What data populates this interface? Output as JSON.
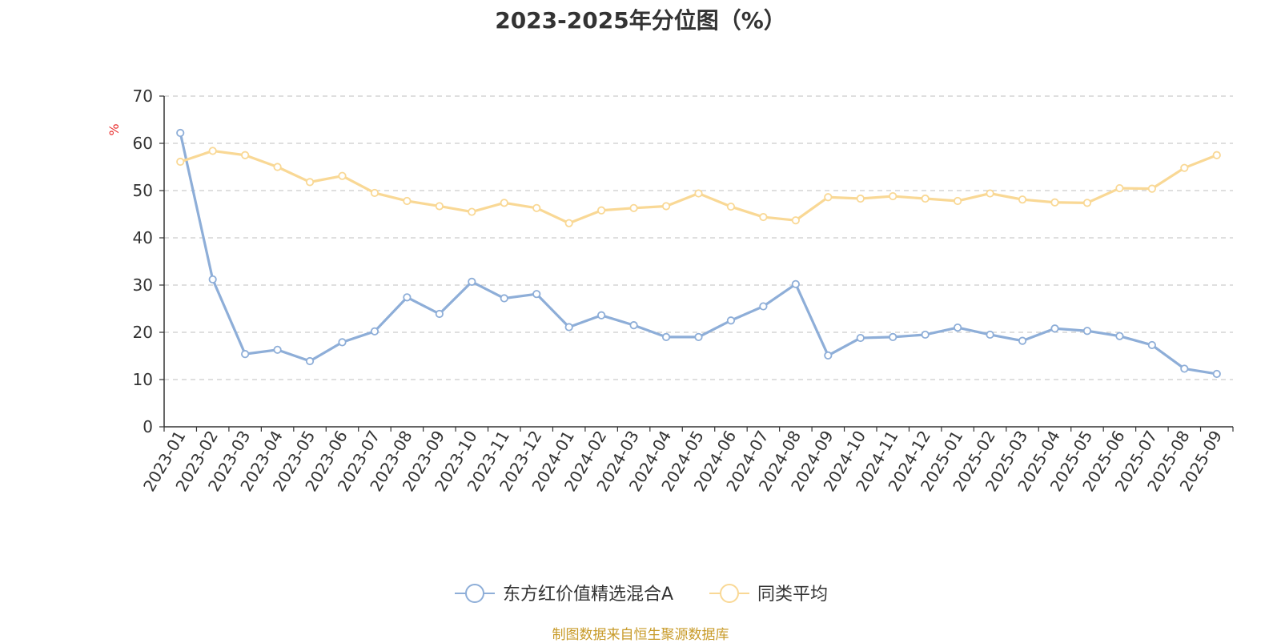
{
  "chart_data": {
    "type": "line",
    "title": "2023-2025年分位图（%）",
    "ylabel": "%",
    "xlabel": "",
    "ylim": [
      0,
      70
    ],
    "yticks": [
      0,
      10,
      20,
      30,
      40,
      50,
      60,
      70
    ],
    "grid": true,
    "legend_position": "bottom",
    "categories": [
      "2023-01",
      "2023-02",
      "2023-03",
      "2023-04",
      "2023-05",
      "2023-06",
      "2023-07",
      "2023-08",
      "2023-09",
      "2023-10",
      "2023-11",
      "2023-12",
      "2024-01",
      "2024-02",
      "2024-03",
      "2024-04",
      "2024-05",
      "2024-06",
      "2024-07",
      "2024-08",
      "2024-09",
      "2024-10",
      "2024-11",
      "2024-12",
      "2025-01",
      "2025-02",
      "2025-03",
      "2025-04",
      "2025-05",
      "2025-06",
      "2025-07",
      "2025-08",
      "2025-09"
    ],
    "series": [
      {
        "name": "东方红价值精选混合A",
        "color": "#8eaed8",
        "values": [
          62.2,
          31.2,
          15.4,
          16.3,
          13.9,
          17.9,
          20.2,
          27.4,
          23.9,
          30.7,
          27.2,
          28.1,
          21.1,
          23.6,
          21.5,
          19.0,
          19.0,
          22.5,
          25.5,
          30.2,
          15.1,
          18.8,
          19.0,
          19.5,
          21.0,
          19.5,
          18.2,
          20.8,
          20.3,
          19.2,
          17.3,
          12.3,
          11.2
        ]
      },
      {
        "name": "同类平均",
        "color": "#f9d895",
        "values": [
          56.1,
          58.4,
          57.5,
          55.0,
          51.8,
          53.1,
          49.5,
          47.8,
          46.7,
          45.5,
          47.4,
          46.3,
          43.1,
          45.8,
          46.3,
          46.7,
          49.4,
          46.6,
          44.4,
          43.7,
          48.6,
          48.3,
          48.8,
          48.3,
          47.8,
          49.4,
          48.1,
          47.5,
          47.4,
          50.5,
          50.4,
          54.8,
          57.5
        ]
      }
    ],
    "source_note": "制图数据来自恒生聚源数据库"
  }
}
